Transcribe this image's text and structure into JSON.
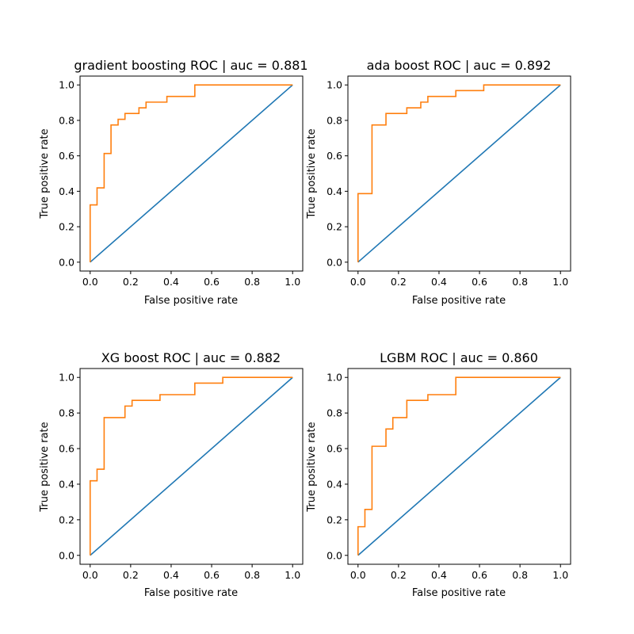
{
  "colors": {
    "diagonal": "#1f77b4",
    "roc": "#ff7f0e",
    "axis": "#000000",
    "background": "#ffffff"
  },
  "chart_data": [
    {
      "type": "line",
      "title": "gradient boosting ROC | auc = 0.881",
      "xlabel": "False positive rate",
      "ylabel": "True positive rate",
      "xlim": [
        -0.05,
        1.05
      ],
      "ylim": [
        -0.05,
        1.05
      ],
      "xticks": [
        "0.0",
        "0.2",
        "0.4",
        "0.6",
        "0.8",
        "1.0"
      ],
      "yticks": [
        "0.0",
        "0.2",
        "0.4",
        "0.6",
        "0.8",
        "1.0"
      ],
      "grid": false,
      "series": [
        {
          "x": [
            0,
            1
          ],
          "y": [
            0,
            1
          ]
        },
        {
          "x": [
            0,
            0,
            0.034,
            0.034,
            0.069,
            0.069,
            0.103,
            0.103,
            0.138,
            0.138,
            0.172,
            0.172,
            0.241,
            0.241,
            0.276,
            0.276,
            0.379,
            0.379,
            0.517,
            0.517,
            1.0
          ],
          "y": [
            0,
            0.323,
            0.323,
            0.419,
            0.419,
            0.613,
            0.613,
            0.774,
            0.774,
            0.806,
            0.806,
            0.839,
            0.839,
            0.871,
            0.871,
            0.903,
            0.903,
            0.935,
            0.935,
            1.0,
            1.0
          ]
        }
      ]
    },
    {
      "type": "line",
      "title": "ada boost ROC | auc = 0.892",
      "xlabel": "False positive rate",
      "ylabel": "True positive rate",
      "xlim": [
        -0.05,
        1.05
      ],
      "ylim": [
        -0.05,
        1.05
      ],
      "xticks": [
        "0.0",
        "0.2",
        "0.4",
        "0.6",
        "0.8",
        "1.0"
      ],
      "yticks": [
        "0.0",
        "0.2",
        "0.4",
        "0.6",
        "0.8",
        "1.0"
      ],
      "grid": false,
      "series": [
        {
          "x": [
            0,
            1
          ],
          "y": [
            0,
            1
          ]
        },
        {
          "x": [
            0,
            0,
            0.069,
            0.069,
            0.138,
            0.138,
            0.241,
            0.241,
            0.31,
            0.31,
            0.345,
            0.345,
            0.483,
            0.483,
            0.621,
            0.621,
            1.0
          ],
          "y": [
            0,
            0.387,
            0.387,
            0.774,
            0.774,
            0.839,
            0.839,
            0.871,
            0.871,
            0.903,
            0.903,
            0.935,
            0.935,
            0.968,
            0.968,
            1.0,
            1.0
          ]
        }
      ]
    },
    {
      "type": "line",
      "title": "XG boost ROC | auc = 0.882",
      "xlabel": "False positive rate",
      "ylabel": "True positive rate",
      "xlim": [
        -0.05,
        1.05
      ],
      "ylim": [
        -0.05,
        1.05
      ],
      "xticks": [
        "0.0",
        "0.2",
        "0.4",
        "0.6",
        "0.8",
        "1.0"
      ],
      "yticks": [
        "0.0",
        "0.2",
        "0.4",
        "0.6",
        "0.8",
        "1.0"
      ],
      "grid": false,
      "series": [
        {
          "x": [
            0,
            1
          ],
          "y": [
            0,
            1
          ]
        },
        {
          "x": [
            0,
            0,
            0.034,
            0.034,
            0.069,
            0.069,
            0.172,
            0.172,
            0.207,
            0.207,
            0.345,
            0.345,
            0.517,
            0.517,
            0.655,
            0.655,
            1.0
          ],
          "y": [
            0,
            0.419,
            0.419,
            0.484,
            0.484,
            0.774,
            0.774,
            0.839,
            0.839,
            0.871,
            0.871,
            0.903,
            0.903,
            0.968,
            0.968,
            1.0,
            1.0
          ]
        }
      ]
    },
    {
      "type": "line",
      "title": "LGBM ROC | auc = 0.860",
      "xlabel": "False positive rate",
      "ylabel": "True positive rate",
      "xlim": [
        -0.05,
        1.05
      ],
      "ylim": [
        -0.05,
        1.05
      ],
      "xticks": [
        "0.0",
        "0.2",
        "0.4",
        "0.6",
        "0.8",
        "1.0"
      ],
      "yticks": [
        "0.0",
        "0.2",
        "0.4",
        "0.6",
        "0.8",
        "1.0"
      ],
      "grid": false,
      "series": [
        {
          "x": [
            0,
            1
          ],
          "y": [
            0,
            1
          ]
        },
        {
          "x": [
            0,
            0,
            0.034,
            0.034,
            0.069,
            0.069,
            0.138,
            0.138,
            0.172,
            0.172,
            0.241,
            0.241,
            0.345,
            0.345,
            0.483,
            0.483,
            1.0
          ],
          "y": [
            0,
            0.161,
            0.161,
            0.258,
            0.258,
            0.613,
            0.613,
            0.71,
            0.71,
            0.774,
            0.774,
            0.871,
            0.871,
            0.903,
            0.903,
            1.0,
            1.0
          ]
        }
      ]
    }
  ]
}
